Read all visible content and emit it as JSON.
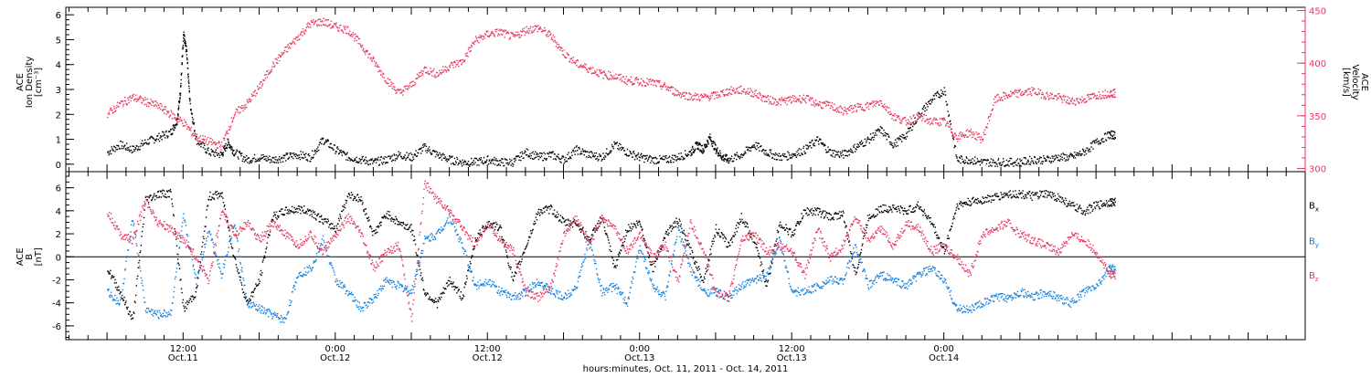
{
  "chart_data": [
    {
      "type": "scatter",
      "panel": "top",
      "left_axis": {
        "label_lines": [
          "ACE",
          "Ion Density",
          "[cm⁻³]"
        ],
        "ylim": [
          -0.3,
          6.3
        ],
        "ticks": [
          "0",
          "1",
          "2",
          "3",
          "4",
          "5",
          "6"
        ]
      },
      "right_axis": {
        "label_lines": [
          "ACE",
          "Velocity",
          "[km/s]"
        ],
        "ylim": [
          297,
          453
        ],
        "ticks": [
          "300",
          "350",
          "400",
          "450"
        ],
        "color": "#e8365d"
      },
      "series": [
        {
          "color": "#000000",
          "axis": "left",
          "x": [
            0,
            2,
            4,
            6,
            8,
            10,
            11,
            11.5,
            12,
            12.5,
            13,
            14,
            16,
            18,
            19,
            20,
            22,
            24,
            26,
            28,
            30,
            32,
            34,
            36,
            38,
            40,
            42,
            44,
            46,
            48,
            50,
            52,
            54,
            56,
            58,
            60,
            62,
            64,
            66,
            68,
            70,
            72,
            74,
            76,
            78,
            80,
            82,
            84,
            86,
            88,
            90,
            92,
            93,
            94,
            95,
            96,
            97,
            98,
            100,
            102,
            104,
            106,
            108,
            110,
            112,
            114,
            116,
            118,
            120,
            122,
            124,
            126,
            128,
            130,
            132,
            134,
            136,
            138,
            140,
            142,
            144,
            146,
            148,
            150,
            152,
            154,
            156,
            158
          ],
          "y": [
            0.5,
            0.8,
            0.6,
            0.9,
            1.1,
            1.3,
            1.8,
            3.0,
            5.2,
            4.5,
            2.5,
            1.0,
            0.5,
            0.4,
            0.9,
            0.5,
            0.2,
            0.3,
            0.2,
            0.3,
            0.4,
            0.3,
            1.0,
            0.6,
            0.3,
            0.2,
            0.1,
            0.2,
            0.4,
            0.3,
            0.7,
            0.4,
            0.2,
            0.1,
            0.1,
            0.2,
            0.1,
            0.1,
            0.5,
            0.3,
            0.4,
            0.2,
            0.6,
            0.4,
            0.3,
            0.8,
            0.5,
            0.3,
            0.2,
            0.2,
            0.3,
            0.5,
            0.8,
            0.6,
            1.1,
            0.6,
            0.3,
            0.2,
            0.4,
            0.8,
            0.5,
            0.3,
            0.4,
            0.6,
            1.0,
            0.5,
            0.4,
            0.7,
            1.0,
            1.4,
            0.8,
            1.2,
            2.0,
            2.6,
            3.0,
            0.2,
            0.2,
            0.1,
            0.1,
            0.1,
            0.1,
            0.2,
            0.2,
            0.3,
            0.3,
            0.5,
            0.9,
            1.2
          ]
        },
        {
          "color": "#e8365d",
          "axis": "right",
          "x": [
            0,
            2,
            4,
            6,
            8,
            10,
            12,
            14,
            16,
            18,
            20,
            22,
            24,
            26,
            28,
            30,
            32,
            34,
            36,
            38,
            40,
            42,
            44,
            46,
            48,
            50,
            52,
            54,
            56,
            58,
            60,
            62,
            64,
            66,
            68,
            70,
            72,
            74,
            76,
            78,
            80,
            82,
            84,
            86,
            88,
            90,
            92,
            94,
            96,
            98,
            100,
            102,
            104,
            106,
            108,
            110,
            112,
            114,
            116,
            118,
            120,
            122,
            124,
            126,
            128,
            130,
            132,
            134,
            136,
            138,
            140,
            142,
            144,
            146,
            148,
            150,
            152,
            154,
            156,
            158
          ],
          "y": [
            352,
            362,
            368,
            364,
            360,
            352,
            344,
            330,
            326,
            322,
            352,
            362,
            378,
            398,
            412,
            425,
            438,
            440,
            435,
            432,
            418,
            402,
            385,
            372,
            380,
            395,
            390,
            398,
            402,
            422,
            428,
            430,
            425,
            432,
            434,
            426,
            410,
            400,
            395,
            390,
            388,
            384,
            383,
            382,
            378,
            372,
            369,
            368,
            370,
            374,
            375,
            372,
            366,
            364,
            366,
            367,
            362,
            360,
            355,
            358,
            360,
            364,
            350,
            345,
            350,
            345,
            345,
            330,
            335,
            328,
            366,
            370,
            372,
            374,
            370,
            368,
            364,
            366,
            370,
            372
          ]
        }
      ]
    },
    {
      "type": "scatter",
      "panel": "bottom",
      "left_axis": {
        "label_lines": [
          "ACE",
          "B",
          "[nT]"
        ],
        "ylim": [
          -7.2,
          7.4
        ],
        "ticks": [
          "-6",
          "-4",
          "-2",
          "0",
          "2",
          "4",
          "6"
        ]
      },
      "series": [
        {
          "name": "B",
          "sub": "x",
          "color": "#000000",
          "x": [
            0,
            2,
            4,
            6,
            8,
            10,
            12,
            14,
            16,
            18,
            20,
            22,
            24,
            26,
            28,
            30,
            32,
            34,
            36,
            38,
            40,
            42,
            44,
            46,
            48,
            50,
            52,
            54,
            56,
            58,
            60,
            62,
            64,
            66,
            68,
            70,
            72,
            74,
            76,
            78,
            80,
            82,
            84,
            86,
            88,
            90,
            92,
            94,
            96,
            98,
            100,
            102,
            104,
            106,
            108,
            110,
            112,
            114,
            116,
            118,
            120,
            122,
            124,
            126,
            128,
            130,
            132,
            134,
            136,
            138,
            140,
            142,
            144,
            146,
            148,
            150,
            152,
            154,
            156,
            158
          ],
          "y": [
            -1.0,
            -3.0,
            -5.5,
            5.0,
            5.5,
            5.6,
            -4.5,
            -3.0,
            5.3,
            5.5,
            0.0,
            -4.0,
            -2.0,
            3.5,
            4.0,
            4.2,
            4.0,
            3.2,
            2.5,
            5.5,
            5.0,
            2.0,
            3.8,
            3.0,
            2.5,
            -3.0,
            -4.0,
            -2.0,
            -3.5,
            1.5,
            3.0,
            2.5,
            -2.0,
            1.0,
            4.0,
            4.2,
            3.0,
            3.0,
            1.5,
            3.5,
            -1.0,
            2.5,
            3.0,
            -1.0,
            2.0,
            3.2,
            0.5,
            -2.0,
            2.5,
            1.0,
            3.5,
            1.5,
            -2.5,
            3.0,
            2.0,
            4.0,
            4.0,
            3.5,
            3.8,
            -1.5,
            3.5,
            4.2,
            4.3,
            4.0,
            4.5,
            3.0,
            0.5,
            4.5,
            4.8,
            5.0,
            5.2,
            5.5,
            5.5,
            5.3,
            5.5,
            5.2,
            4.5,
            4.0,
            4.5,
            4.8
          ]
        },
        {
          "name": "B",
          "sub": "y",
          "color": "#1080e0",
          "x": [
            0,
            2,
            4,
            6,
            8,
            10,
            12,
            14,
            16,
            18,
            20,
            22,
            24,
            26,
            28,
            30,
            32,
            34,
            36,
            38,
            40,
            42,
            44,
            46,
            48,
            50,
            52,
            54,
            56,
            58,
            60,
            62,
            64,
            66,
            68,
            70,
            72,
            74,
            76,
            78,
            80,
            82,
            84,
            86,
            88,
            90,
            92,
            94,
            96,
            98,
            100,
            102,
            104,
            106,
            108,
            110,
            112,
            114,
            116,
            118,
            120,
            122,
            124,
            126,
            128,
            130,
            132,
            134,
            136,
            138,
            140,
            142,
            144,
            146,
            148,
            150,
            152,
            154,
            156,
            158
          ],
          "y": [
            -3.0,
            -4.0,
            3.5,
            -4.5,
            -5.0,
            -4.8,
            3.5,
            -2.0,
            2.5,
            -1.5,
            3.0,
            -4.0,
            -4.5,
            -5.0,
            -5.5,
            -1.5,
            -1.0,
            1.5,
            -2.0,
            -3.0,
            -4.5,
            -3.5,
            -2.0,
            -2.5,
            -3.0,
            1.5,
            2.0,
            3.5,
            1.0,
            -2.5,
            -2.0,
            -3.0,
            -3.5,
            -3.0,
            -2.0,
            -3.0,
            -3.5,
            -2.5,
            1.5,
            -3.0,
            -2.5,
            -4.0,
            1.0,
            -2.5,
            -3.5,
            2.5,
            -1.0,
            -3.0,
            -3.0,
            -3.5,
            -2.5,
            -2.0,
            -1.5,
            1.5,
            -3.0,
            -3.0,
            -2.5,
            -2.0,
            -2.0,
            1.0,
            -2.5,
            -1.5,
            -2.0,
            -2.5,
            -1.5,
            -1.0,
            -2.0,
            -4.5,
            -4.5,
            -4.0,
            -3.5,
            -3.5,
            -3.0,
            -3.5,
            -3.0,
            -3.5,
            -4.0,
            -3.0,
            -2.5,
            -1.0
          ]
        },
        {
          "name": "B",
          "sub": "z",
          "color": "#e8365d",
          "x": [
            0,
            2,
            4,
            6,
            8,
            10,
            12,
            14,
            16,
            18,
            20,
            22,
            24,
            26,
            28,
            30,
            32,
            34,
            36,
            38,
            40,
            42,
            44,
            46,
            48,
            50,
            52,
            54,
            56,
            58,
            60,
            62,
            64,
            66,
            68,
            70,
            72,
            74,
            76,
            78,
            80,
            82,
            84,
            86,
            88,
            90,
            92,
            94,
            96,
            98,
            100,
            102,
            104,
            106,
            108,
            110,
            112,
            114,
            116,
            118,
            120,
            122,
            124,
            126,
            128,
            130,
            132,
            134,
            136,
            138,
            140,
            142,
            144,
            146,
            148,
            150,
            152,
            154,
            156,
            158
          ],
          "y": [
            4.0,
            2.0,
            1.5,
            5.0,
            3.0,
            2.5,
            1.5,
            0.0,
            -2.0,
            4.0,
            2.0,
            3.0,
            1.5,
            3.0,
            2.0,
            1.0,
            2.0,
            0.5,
            2.0,
            3.5,
            2.0,
            -1.0,
            0.5,
            1.0,
            -5.5,
            6.5,
            5.0,
            4.0,
            2.5,
            1.0,
            3.0,
            1.5,
            0.5,
            -3.0,
            -3.5,
            -2.5,
            2.0,
            3.5,
            1.0,
            3.5,
            2.5,
            0.5,
            2.0,
            0.0,
            1.0,
            -2.0,
            3.0,
            0.5,
            -3.0,
            -3.5,
            1.5,
            2.0,
            0.5,
            1.0,
            0.5,
            -1.5,
            2.5,
            0.0,
            1.0,
            3.5,
            1.5,
            2.5,
            1.0,
            3.0,
            2.5,
            0.5,
            1.0,
            0.0,
            -1.5,
            2.0,
            2.5,
            3.0,
            2.0,
            1.5,
            1.0,
            0.5,
            2.0,
            1.5,
            0.5,
            -1.5
          ]
        }
      ]
    }
  ],
  "x_axis": {
    "xlim": [
      -6.5,
      189
    ],
    "xlabel": "hours:minutes, Oct. 11, 2011 - Oct. 14, 2011",
    "major_ticks": [
      {
        "h": 12,
        "time": "12:00",
        "date": "Oct.11"
      },
      {
        "h": 36,
        "time": "0:00",
        "date": "Oct.12"
      },
      {
        "h": 60,
        "time": "12:00",
        "date": "Oct.12"
      },
      {
        "h": 84,
        "time": "0:00",
        "date": "Oct.13"
      },
      {
        "h": 108,
        "time": "12:00",
        "date": "Oct.13"
      },
      {
        "h": 132,
        "time": "0:00",
        "date": "Oct.14"
      }
    ]
  }
}
